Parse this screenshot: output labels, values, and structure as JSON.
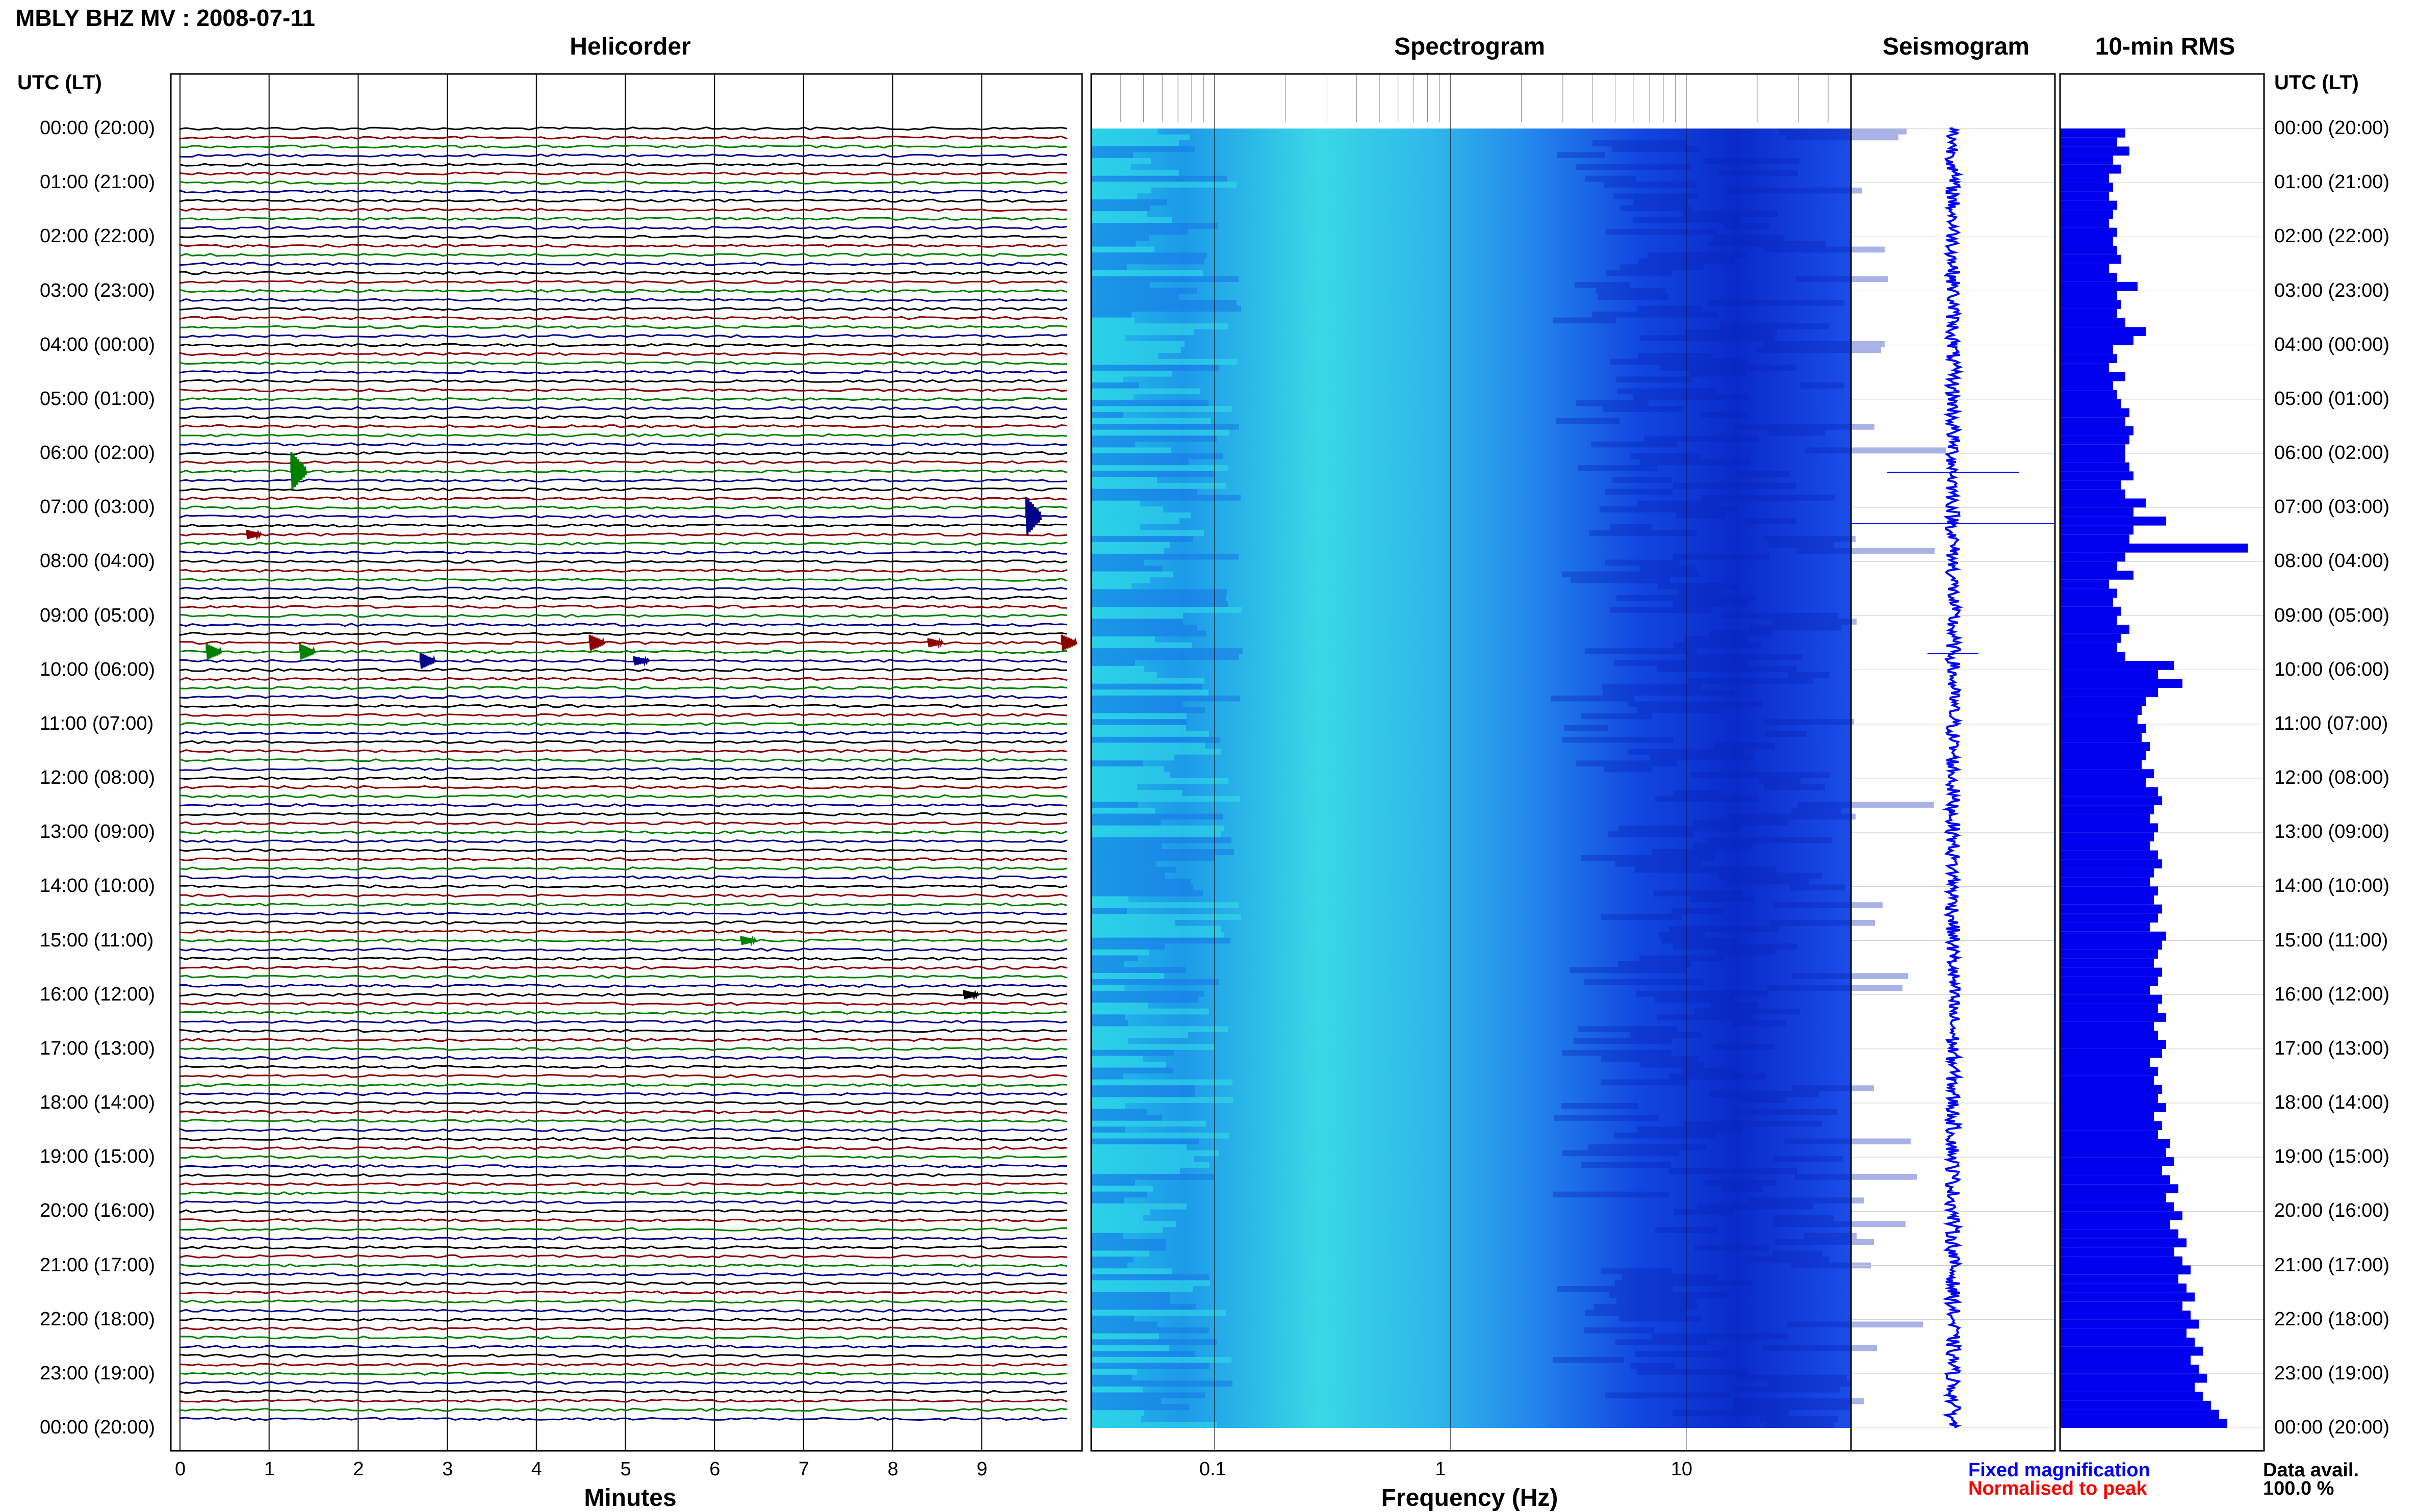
{
  "title": "MBLY BHZ MV : 2008-07-11",
  "panels": {
    "helicorder": "Helicorder",
    "spectrogram": "Spectrogram",
    "seismogram": "Seismogram",
    "rms": "10-min RMS"
  },
  "utc_label_left": "UTC (LT)",
  "utc_label_right": "UTC (LT)",
  "hour_labels": [
    "00:00 (20:00)",
    "01:00 (21:00)",
    "02:00 (22:00)",
    "03:00 (23:00)",
    "04:00 (00:00)",
    "05:00 (01:00)",
    "06:00 (02:00)",
    "07:00 (03:00)",
    "08:00 (04:00)",
    "09:00 (05:00)",
    "10:00 (06:00)",
    "11:00 (07:00)",
    "12:00 (08:00)",
    "13:00 (09:00)",
    "14:00 (10:00)",
    "15:00 (11:00)",
    "16:00 (12:00)",
    "17:00 (13:00)",
    "18:00 (14:00)",
    "19:00 (15:00)",
    "20:00 (16:00)",
    "21:00 (17:00)",
    "22:00 (18:00)",
    "23:00 (19:00)",
    "00:00 (20:00)"
  ],
  "x_axes": {
    "minutes_label": "Minutes",
    "minutes_ticks": [
      "0",
      "1",
      "2",
      "3",
      "4",
      "5",
      "6",
      "7",
      "8",
      "9"
    ],
    "frequency_label": "Frequency (Hz)",
    "frequency_ticks": [
      "0.1",
      "1",
      "10"
    ]
  },
  "legend": {
    "fixed": "Fixed magnification",
    "normalised": "Normalised to peak"
  },
  "data_availability": {
    "label": "Data avail.",
    "value": "100.0 %"
  },
  "colors": {
    "trace_cycle": [
      "#000000",
      "#8b0000",
      "#008000",
      "#00008b"
    ],
    "seismogram": "#0000ff",
    "rms_bars": "#0000ee",
    "spectrogram_low": "#0a2bd6",
    "spectrogram_high": "#38e8e0"
  },
  "chart_data": [
    {
      "type": "line",
      "name": "helicorder",
      "x_unit": "minutes",
      "xlim": [
        0,
        10
      ],
      "rows_per_hour": 6,
      "row_count": 144,
      "events": [
        {
          "time_utc": "06:20",
          "minute": 1.25,
          "amplitude": "large"
        },
        {
          "time_utc": "07:10",
          "minute": 9.5,
          "amplitude": "large"
        },
        {
          "time_utc": "07:30",
          "minute": 0.75,
          "amplitude": "small"
        },
        {
          "time_utc": "09:40",
          "minute": 0.3,
          "amplitude": "medium"
        },
        {
          "time_utc": "09:40",
          "minute": 1.35,
          "amplitude": "medium"
        },
        {
          "time_utc": "09:30",
          "minute": 4.6,
          "amplitude": "medium"
        },
        {
          "time_utc": "09:30",
          "minute": 8.4,
          "amplitude": "small"
        },
        {
          "time_utc": "09:30",
          "minute": 9.9,
          "amplitude": "medium"
        },
        {
          "time_utc": "09:50",
          "minute": 2.7,
          "amplitude": "medium"
        },
        {
          "time_utc": "09:50",
          "minute": 5.1,
          "amplitude": "small"
        },
        {
          "time_utc": "15:00",
          "minute": 6.3,
          "amplitude": "small"
        },
        {
          "time_utc": "16:00",
          "minute": 8.8,
          "amplitude": "small"
        }
      ]
    },
    {
      "type": "heatmap",
      "name": "spectrogram",
      "x_unit": "Hz",
      "x_scale": "log",
      "xlim": [
        0.03,
        50
      ],
      "y_unit": "UTC hour",
      "ylim": [
        0,
        24
      ]
    },
    {
      "type": "line",
      "name": "seismogram",
      "ylim": [
        0,
        24
      ],
      "spikes": [
        {
          "hour": 6.35,
          "relative_width": 0.65
        },
        {
          "hour": 7.3,
          "relative_width": 1.0
        },
        {
          "hour": 9.7,
          "relative_width": 0.25
        }
      ]
    },
    {
      "type": "bar",
      "name": "rms",
      "orientation": "horizontal",
      "bin_minutes": 10,
      "ylim": [
        0,
        24
      ],
      "values": [
        0.16,
        0.14,
        0.17,
        0.13,
        0.15,
        0.12,
        0.13,
        0.12,
        0.14,
        0.13,
        0.12,
        0.14,
        0.13,
        0.14,
        0.15,
        0.12,
        0.14,
        0.19,
        0.14,
        0.15,
        0.14,
        0.16,
        0.21,
        0.18,
        0.13,
        0.14,
        0.12,
        0.16,
        0.13,
        0.14,
        0.15,
        0.17,
        0.16,
        0.18,
        0.17,
        0.16,
        0.16,
        0.17,
        0.18,
        0.15,
        0.16,
        0.21,
        0.18,
        0.26,
        0.18,
        0.17,
        0.46,
        0.16,
        0.14,
        0.18,
        0.12,
        0.14,
        0.13,
        0.15,
        0.14,
        0.17,
        0.15,
        0.14,
        0.16,
        0.28,
        0.24,
        0.3,
        0.24,
        0.21,
        0.2,
        0.19,
        0.21,
        0.2,
        0.22,
        0.21,
        0.2,
        0.23,
        0.21,
        0.24,
        0.25,
        0.23,
        0.22,
        0.24,
        0.23,
        0.22,
        0.24,
        0.25,
        0.23,
        0.22,
        0.24,
        0.23,
        0.25,
        0.24,
        0.22,
        0.26,
        0.25,
        0.24,
        0.23,
        0.25,
        0.24,
        0.22,
        0.25,
        0.24,
        0.26,
        0.23,
        0.24,
        0.26,
        0.25,
        0.22,
        0.24,
        0.23,
        0.25,
        0.24,
        0.26,
        0.23,
        0.25,
        0.24,
        0.27,
        0.26,
        0.28,
        0.25,
        0.27,
        0.29,
        0.26,
        0.28,
        0.3,
        0.27,
        0.29,
        0.31,
        0.28,
        0.3,
        0.32,
        0.29,
        0.31,
        0.33,
        0.3,
        0.32,
        0.34,
        0.31,
        0.33,
        0.35,
        0.32,
        0.34,
        0.36,
        0.33,
        0.35,
        0.37,
        0.39,
        0.41
      ]
    }
  ]
}
